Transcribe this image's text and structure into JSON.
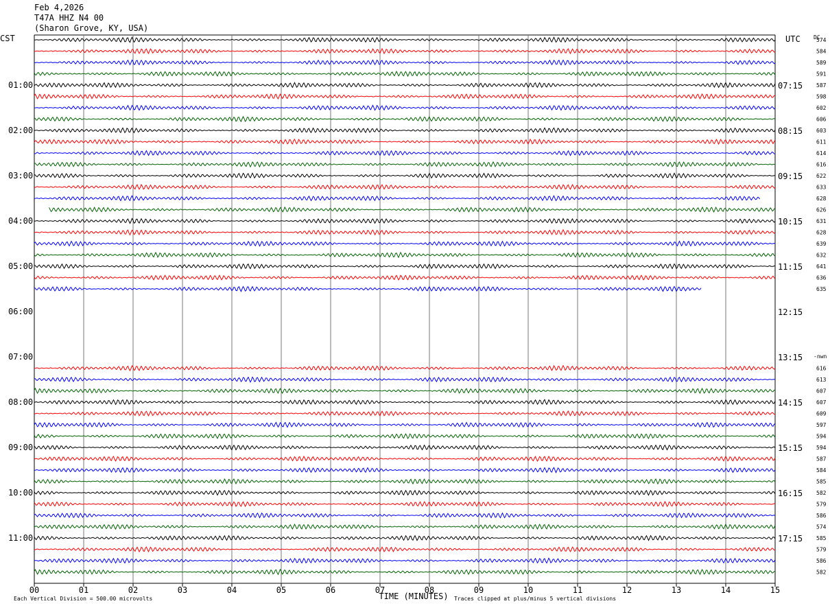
{
  "header": {
    "date": "Feb 4,2026",
    "station": "T47A HHZ N4 00",
    "location": "(Sharon Grove, KY, USA)"
  },
  "left_tz": "CST",
  "right_tz": "UTC",
  "dc_label": "DC",
  "x_axis_title": "TIME (MINUTES)",
  "footer": {
    "scale": "Each Vertical Division =  500.00 microvolts",
    "clip": "Traces clipped at plus/minus 5 vertical divisions"
  },
  "chart_data": {
    "type": "line",
    "title": "T47A HHZ N4 00",
    "xlabel": "TIME (MINUTES)",
    "x_ticks": [
      "00",
      "01",
      "02",
      "03",
      "04",
      "05",
      "06",
      "07",
      "08",
      "09",
      "10",
      "11",
      "12",
      "13",
      "14",
      "15"
    ],
    "xlim": [
      0,
      15
    ],
    "left_hour_labels": [
      "01:00",
      "02:00",
      "03:00",
      "04:00",
      "05:00",
      "06:00",
      "07:00",
      "08:00",
      "09:00",
      "10:00",
      "11:00"
    ],
    "right_hour_labels": [
      "07:15",
      "08:15",
      "09:15",
      "10:15",
      "11:15",
      "12:15",
      "13:15",
      "14:15",
      "15:15",
      "16:15",
      "17:15"
    ],
    "trace_colors": [
      "#000000",
      "#ff0000",
      "#0000ff",
      "#006400"
    ],
    "traces": [
      {
        "row": 0,
        "color": "#000000",
        "dc": "574",
        "start": 0,
        "end": 15
      },
      {
        "row": 1,
        "color": "#ff0000",
        "dc": "584",
        "start": 0,
        "end": 15
      },
      {
        "row": 2,
        "color": "#0000ff",
        "dc": "589",
        "start": 0,
        "end": 15
      },
      {
        "row": 3,
        "color": "#006400",
        "dc": "591",
        "start": 0,
        "end": 15
      },
      {
        "row": 4,
        "color": "#000000",
        "dc": "587",
        "start": 0,
        "end": 15
      },
      {
        "row": 5,
        "color": "#ff0000",
        "dc": "598",
        "start": 0,
        "end": 15
      },
      {
        "row": 6,
        "color": "#0000ff",
        "dc": "602",
        "start": 0,
        "end": 15
      },
      {
        "row": 7,
        "color": "#006400",
        "dc": "606",
        "start": 0,
        "end": 15
      },
      {
        "row": 8,
        "color": "#000000",
        "dc": "603",
        "start": 0,
        "end": 15
      },
      {
        "row": 9,
        "color": "#ff0000",
        "dc": "611",
        "start": 0,
        "end": 15
      },
      {
        "row": 10,
        "color": "#0000ff",
        "dc": "614",
        "start": 0,
        "end": 15
      },
      {
        "row": 11,
        "color": "#006400",
        "dc": "616",
        "start": 0,
        "end": 15
      },
      {
        "row": 12,
        "color": "#000000",
        "dc": "622",
        "start": 0,
        "end": 15
      },
      {
        "row": 13,
        "color": "#ff0000",
        "dc": "633",
        "start": 0,
        "end": 15
      },
      {
        "row": 14,
        "color": "#0000ff",
        "dc": "628",
        "start": 0,
        "end": 14.7
      },
      {
        "row": 15,
        "color": "#006400",
        "dc": "626",
        "start": 0.3,
        "end": 15
      },
      {
        "row": 16,
        "color": "#000000",
        "dc": "631",
        "start": 0,
        "end": 15
      },
      {
        "row": 17,
        "color": "#ff0000",
        "dc": "628",
        "start": 0,
        "end": 15
      },
      {
        "row": 18,
        "color": "#0000ff",
        "dc": "639",
        "start": 0,
        "end": 15
      },
      {
        "row": 19,
        "color": "#006400",
        "dc": "632",
        "start": 0,
        "end": 15
      },
      {
        "row": 20,
        "color": "#000000",
        "dc": "641",
        "start": 0,
        "end": 15
      },
      {
        "row": 21,
        "color": "#ff0000",
        "dc": "636",
        "start": 0,
        "end": 15
      },
      {
        "row": 22,
        "color": "#0000ff",
        "dc": "635",
        "start": 0,
        "end": 13.5
      },
      {
        "row": 29,
        "color": "#ff0000",
        "dc": "616",
        "start": 0,
        "end": 15
      },
      {
        "row": 30,
        "color": "#0000ff",
        "dc": "613",
        "start": 0,
        "end": 15
      },
      {
        "row": 31,
        "color": "#006400",
        "dc": "607",
        "start": 0,
        "end": 15
      },
      {
        "row": 32,
        "color": "#000000",
        "dc": "607",
        "start": 0,
        "end": 15
      },
      {
        "row": 33,
        "color": "#ff0000",
        "dc": "609",
        "start": 0,
        "end": 15
      },
      {
        "row": 34,
        "color": "#0000ff",
        "dc": "597",
        "start": 0,
        "end": 15
      },
      {
        "row": 35,
        "color": "#006400",
        "dc": "594",
        "start": 0,
        "end": 15
      },
      {
        "row": 36,
        "color": "#000000",
        "dc": "594",
        "start": 0,
        "end": 15
      },
      {
        "row": 37,
        "color": "#ff0000",
        "dc": "587",
        "start": 0,
        "end": 15
      },
      {
        "row": 38,
        "color": "#0000ff",
        "dc": "584",
        "start": 0,
        "end": 15
      },
      {
        "row": 39,
        "color": "#006400",
        "dc": "585",
        "start": 0,
        "end": 15
      },
      {
        "row": 40,
        "color": "#000000",
        "dc": "582",
        "start": 0,
        "end": 15
      },
      {
        "row": 41,
        "color": "#ff0000",
        "dc": "579",
        "start": 0,
        "end": 15
      },
      {
        "row": 42,
        "color": "#0000ff",
        "dc": "586",
        "start": 0,
        "end": 15
      },
      {
        "row": 43,
        "color": "#006400",
        "dc": "574",
        "start": 0,
        "end": 15
      },
      {
        "row": 44,
        "color": "#000000",
        "dc": "585",
        "start": 0,
        "end": 15
      },
      {
        "row": 45,
        "color": "#ff0000",
        "dc": "579",
        "start": 0,
        "end": 15
      },
      {
        "row": 46,
        "color": "#0000ff",
        "dc": "586",
        "start": 0,
        "end": 15
      },
      {
        "row": 47,
        "color": "#006400",
        "dc": "582",
        "start": 0,
        "end": 15
      }
    ],
    "nwn_label": "-nwn",
    "grid": true
  }
}
